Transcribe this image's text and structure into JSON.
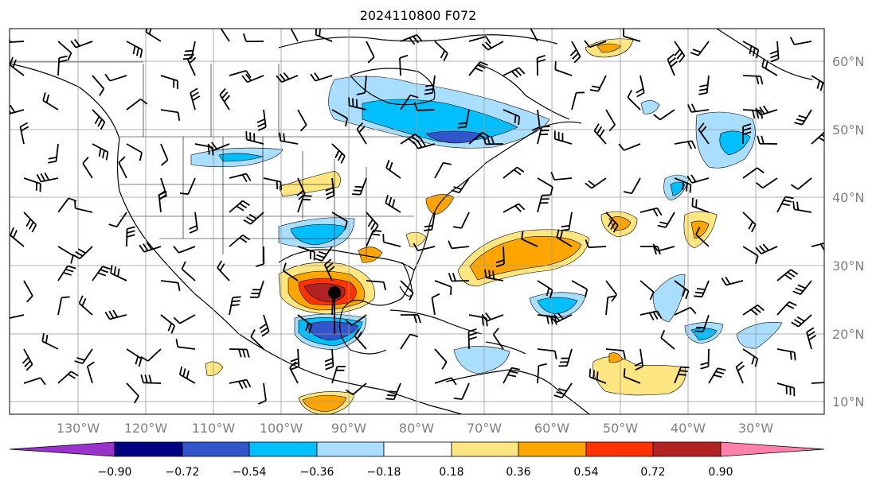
{
  "title": "2024110800 F072",
  "lat_labels": [
    "60°N",
    "50°N",
    "40°N",
    "30°N",
    "20°N",
    "10°N"
  ],
  "lon_labels": [
    "130°W",
    "120°W",
    "110°W",
    "100°W",
    "90°W",
    "80°W",
    "70°W",
    "60°W",
    "50°W",
    "40°W",
    "30°W"
  ],
  "colorbar": {
    "ticks": [
      "−0.90",
      "−0.72",
      "−0.54",
      "−0.36",
      "−0.18",
      "0.18",
      "0.36",
      "0.54",
      "0.72",
      "0.90"
    ],
    "colors": {
      "under": "#9933cc",
      "b1": "#000080",
      "b2": "#3355cc",
      "b3": "#00bfff",
      "b4": "#aadeff",
      "b5": "#ffffff",
      "b6": "#ffe680",
      "b7": "#ffa500",
      "b8": "#ff3300",
      "b9": "#b22222",
      "over": "#ff80aa"
    }
  },
  "map_extent": {
    "lon": [
      -135,
      -15
    ],
    "lat": [
      7,
      65
    ]
  }
}
